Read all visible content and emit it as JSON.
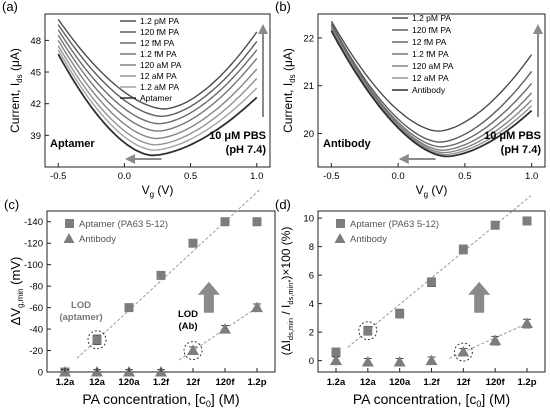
{
  "chart_data": [
    {
      "type": "line",
      "panel_label": "(a)",
      "xlabel_main": "V",
      "xlabel_sub": "g",
      "xlabel_unit": " (V)",
      "ylabel_main": "Current, I",
      "ylabel_sub": "ds",
      "ylabel_unit": " (μA)",
      "xlim": [
        -0.6,
        1.1
      ],
      "ylim": [
        36,
        50.5
      ],
      "xticks": [
        -0.5,
        0.0,
        0.5,
        1.0
      ],
      "xtick_labels": [
        "-0.5",
        "0.0",
        "0.5",
        "1.0"
      ],
      "yticks": [
        39,
        42,
        45,
        48
      ],
      "ytick_labels": [
        "39",
        "42",
        "45",
        "48"
      ],
      "inside_label": "Aptamer",
      "condition_line1": "10 μM PBS",
      "condition_line2": "(pH 7.4)",
      "legend": [
        "1.2 pM PA",
        "120 fM PA",
        "12 fM PA",
        "1.2 fM PA",
        "120 aM PA",
        "12 aM PA",
        "1.2 aM PA",
        "Aptamer"
      ],
      "x_start": -0.5,
      "x_end": 1.0,
      "series": [
        {
          "name": "1.2 pM PA",
          "start": 50.0,
          "min_x": 0.3,
          "min_y": 41.5,
          "end": 48.8,
          "color": "#4d4d4d"
        },
        {
          "name": "120 fM PA",
          "start": 49.5,
          "min_x": 0.28,
          "min_y": 40.8,
          "end": 47.9,
          "color": "#5c5c5c"
        },
        {
          "name": "12 fM PA",
          "start": 49.0,
          "min_x": 0.26,
          "min_y": 40.1,
          "end": 47.1,
          "color": "#6a6a6a"
        },
        {
          "name": "1.2 fM PA",
          "start": 48.5,
          "min_x": 0.25,
          "min_y": 39.4,
          "end": 46.3,
          "color": "#777777"
        },
        {
          "name": "120 aM PA",
          "start": 48.0,
          "min_x": 0.24,
          "min_y": 38.7,
          "end": 45.3,
          "color": "#858585"
        },
        {
          "name": "12 aM PA",
          "start": 47.5,
          "min_x": 0.23,
          "min_y": 38.1,
          "end": 44.4,
          "color": "#939393"
        },
        {
          "name": "1.2 aM PA",
          "start": 47.1,
          "min_x": 0.22,
          "min_y": 37.6,
          "end": 43.5,
          "color": "#a3a3a3"
        },
        {
          "name": "Aptamer",
          "start": 46.7,
          "min_x": 0.21,
          "min_y": 37.1,
          "end": 42.6,
          "color": "#2f2f2f"
        }
      ]
    },
    {
      "type": "line",
      "panel_label": "(b)",
      "xlabel_main": "V",
      "xlabel_sub": "g",
      "xlabel_unit": " (V)",
      "ylabel_main": "Current, I",
      "ylabel_sub": "ds",
      "ylabel_unit": " (μA)",
      "xlim": [
        -0.6,
        1.1
      ],
      "ylim": [
        19.3,
        22.5
      ],
      "xticks": [
        -0.5,
        0.0,
        0.5,
        1.0
      ],
      "xtick_labels": [
        "-0.5",
        "0.0",
        "0.5",
        "1.0"
      ],
      "yticks": [
        20,
        21,
        22
      ],
      "ytick_labels": [
        "20",
        "21",
        "22"
      ],
      "inside_label": "Antibody",
      "condition_line1": "10 μM PBS",
      "condition_line2": "(pH 7.4)",
      "legend": [
        "1.2 pM PA",
        "120 fM PA",
        "12 fM PA",
        "1.2 fM PA",
        "120 aM PA",
        "12 aM PA",
        "Antibody"
      ],
      "x_start": -0.5,
      "x_end": 1.0,
      "series": [
        {
          "name": "1.2 pM PA",
          "start": 22.35,
          "min_x": 0.3,
          "min_y": 20.05,
          "end": 21.65,
          "color": "#4d4d4d"
        },
        {
          "name": "120 fM PA",
          "start": 22.3,
          "min_x": 0.31,
          "min_y": 19.82,
          "end": 21.3,
          "color": "#5c5c5c"
        },
        {
          "name": "12 fM PA",
          "start": 22.27,
          "min_x": 0.32,
          "min_y": 19.72,
          "end": 21.05,
          "color": "#6a6a6a"
        },
        {
          "name": "1.2 fM PA",
          "start": 22.24,
          "min_x": 0.33,
          "min_y": 19.65,
          "end": 20.85,
          "color": "#777777"
        },
        {
          "name": "120 aM PA",
          "start": 22.21,
          "min_x": 0.34,
          "min_y": 19.6,
          "end": 20.7,
          "color": "#858585"
        },
        {
          "name": "12 aM PA",
          "start": 22.18,
          "min_x": 0.35,
          "min_y": 19.56,
          "end": 20.58,
          "color": "#939393"
        },
        {
          "name": "Antibody",
          "start": 22.15,
          "min_x": 0.36,
          "min_y": 19.52,
          "end": 20.48,
          "color": "#2f2f2f"
        }
      ]
    },
    {
      "type": "scatter",
      "panel_label": "(c)",
      "xlabel_main": "PA concentration, [c",
      "xlabel_sub": "0",
      "xlabel_unit": "] (M)",
      "ylabel_main": "ΔV",
      "ylabel_sub": "g,min",
      "ylabel_unit": " (mV)",
      "categories": [
        "1.2a",
        "12a",
        "120a",
        "1.2f",
        "12f",
        "120f",
        "1.2p"
      ],
      "ylim": [
        0,
        -150
      ],
      "yticks": [
        0,
        -20,
        -40,
        -60,
        -80,
        -100,
        -120,
        -140
      ],
      "ytick_labels": [
        "0",
        "-20",
        "-40",
        "-60",
        "-80",
        "-100",
        "-120",
        "-140"
      ],
      "legend": [
        "Aptamer (PA63 5-12)",
        "Antibody"
      ],
      "series": [
        {
          "name": "Aptamer (PA63 5-12)",
          "marker": "square",
          "values": [
            0,
            -30,
            -60,
            -90,
            -120,
            -140,
            -140
          ],
          "errors": [
            2,
            3,
            2,
            2,
            2,
            2,
            2
          ],
          "fit_from": 1
        },
        {
          "name": "Antibody",
          "marker": "triangle",
          "values": [
            0,
            0,
            0,
            0,
            -20,
            -40,
            -60
          ],
          "errors": [
            1,
            1,
            1,
            1,
            2,
            2,
            2
          ],
          "fit_from": 4
        }
      ],
      "lod_apt_line1": "LOD",
      "lod_apt_line2": "(aptamer)",
      "lod_ab_line1": "LOD",
      "lod_ab_line2": "(Ab)",
      "lod_apt_index": 1,
      "lod_ab_index": 4
    },
    {
      "type": "scatter",
      "panel_label": "(d)",
      "xlabel_main": "PA concentration, [c",
      "xlabel_sub": "0",
      "xlabel_unit": "] (M)",
      "ylabel_text": "(ΔI",
      "ylabel_sub1": "ds,min",
      "ylabel_mid": " / I",
      "ylabel_sub2": "ds,min*",
      "ylabel_tail": ")×100 (%)",
      "categories": [
        "1.2a",
        "12a",
        "120a",
        "1.2f",
        "12f",
        "120f",
        "1.2p"
      ],
      "ylim": [
        -0.8,
        10.5
      ],
      "yticks": [
        0,
        2,
        4,
        6,
        8,
        10
      ],
      "ytick_labels": [
        "0",
        "2",
        "4",
        "6",
        "8",
        "10"
      ],
      "legend": [
        "Aptamer (PA63 5-12)",
        "Antibody"
      ],
      "series": [
        {
          "name": "Aptamer (PA63 5-12)",
          "marker": "square",
          "values": [
            0.6,
            2.1,
            3.3,
            5.5,
            7.8,
            9.5,
            9.8
          ],
          "errors": [
            0.15,
            0.2,
            0.2,
            0.2,
            0.2,
            0.15,
            0.15
          ],
          "fit_from": 1
        },
        {
          "name": "Antibody",
          "marker": "triangle",
          "values": [
            0.0,
            -0.1,
            -0.1,
            0.0,
            0.6,
            1.4,
            2.6
          ],
          "errors": [
            0.15,
            0.15,
            0.15,
            0.15,
            0.15,
            0.2,
            0.2
          ],
          "fit_from": 4
        }
      ],
      "lod_apt_index": 1,
      "lod_ab_index": 4
    }
  ],
  "colors": {
    "axis": "#222222",
    "marker": "#7d7d7d",
    "arrow": "#8a8a8a",
    "fit": "#9a9a9a"
  }
}
